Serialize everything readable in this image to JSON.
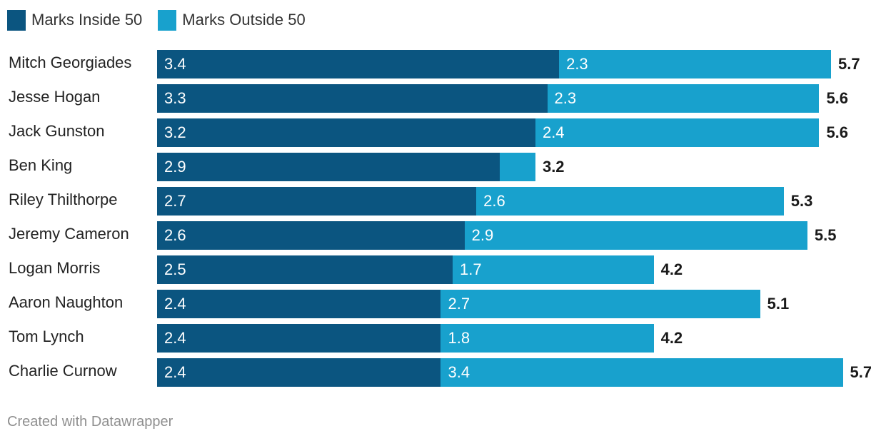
{
  "chart_data": {
    "type": "bar",
    "orientation": "horizontal",
    "stacked": true,
    "title": "",
    "xlabel": "",
    "ylabel": "",
    "xlim": [
      0,
      5.7
    ],
    "categories": [
      "Mitch Georgiades",
      "Jesse Hogan",
      "Jack Gunston",
      "Ben King",
      "Riley Thilthorpe",
      "Jeremy Cameron",
      "Logan Morris",
      "Aaron Naughton",
      "Tom Lynch",
      "Charlie Curnow"
    ],
    "series": [
      {
        "name": "Marks Inside 50",
        "color": "#0b5580",
        "values": [
          3.4,
          3.3,
          3.2,
          2.9,
          2.7,
          2.6,
          2.5,
          2.4,
          2.4,
          2.4
        ],
        "labels": [
          "3.4",
          "3.3",
          "3.2",
          "2.9",
          "2.7",
          "2.6",
          "2.5",
          "2.4",
          "2.4",
          "2.4"
        ]
      },
      {
        "name": "Marks Outside 50",
        "color": "#18a1cd",
        "values": [
          2.3,
          2.3,
          2.4,
          0.3,
          2.6,
          2.9,
          1.7,
          2.7,
          1.8,
          3.4
        ],
        "labels": [
          "2.3",
          "2.3",
          "2.4",
          "",
          "2.6",
          "2.9",
          "1.7",
          "2.7",
          "1.8",
          "3.4"
        ]
      }
    ],
    "totals": [
      "5.7",
      "5.6",
      "5.6",
      "3.2",
      "5.3",
      "5.5",
      "4.2",
      "5.1",
      "4.2",
      "5.7"
    ],
    "legend_position": "top-left"
  },
  "footer": {
    "credit": "Created with Datawrapper"
  }
}
